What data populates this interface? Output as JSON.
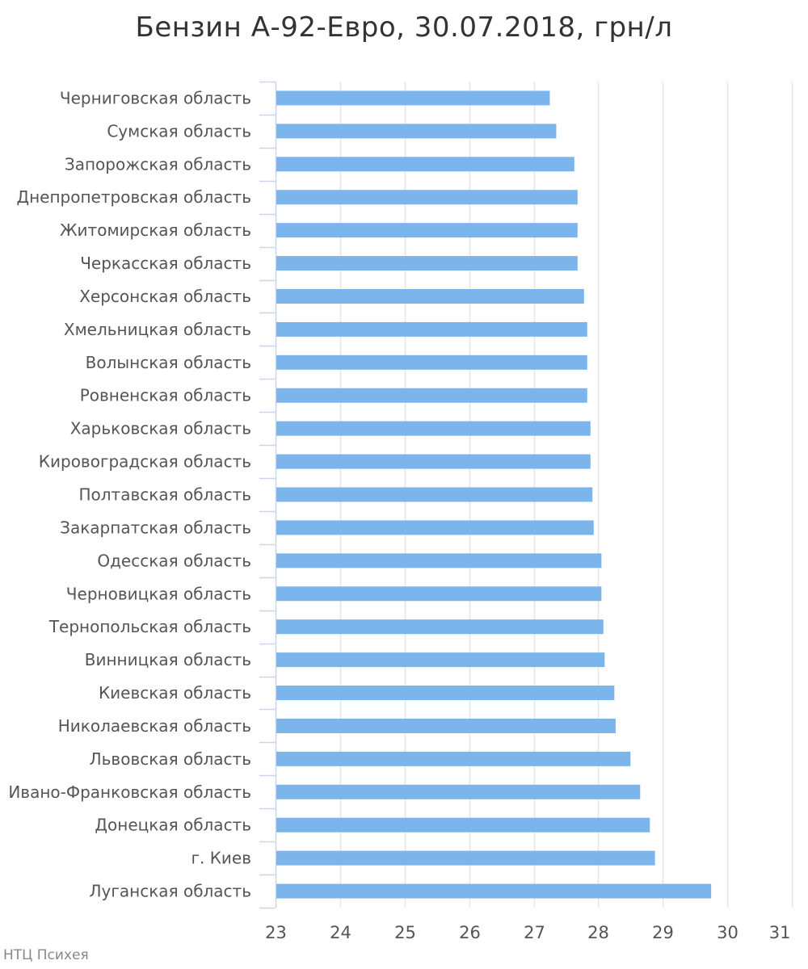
{
  "chart_data": {
    "type": "bar",
    "orientation": "horizontal",
    "title": "Бензин А-92-Евро, 30.07.2018, грн/л",
    "xlabel": "",
    "ylabel": "",
    "categories": [
      "Черниговская область",
      "Сумская область",
      "Запорожская область",
      "Днепропетровская область",
      "Житомирская область",
      "Черкасская область",
      "Херсонская область",
      "Хмельницкая область",
      "Волынская область",
      "Ровненская область",
      "Харьковская область",
      "Кировоградская область",
      "Полтавская область",
      "Закарпатская область",
      "Одесская область",
      "Черновицкая область",
      "Тернопольская область",
      "Винницкая область",
      "Киевская область",
      "Николаевская область",
      "Львовская область",
      "Ивано-Франковская область",
      "Донецкая область",
      "г. Киев",
      "Луганская область"
    ],
    "values": [
      27.25,
      27.35,
      27.63,
      27.68,
      27.68,
      27.68,
      27.78,
      27.83,
      27.83,
      27.83,
      27.88,
      27.88,
      27.91,
      27.93,
      28.05,
      28.05,
      28.08,
      28.1,
      28.25,
      28.27,
      28.5,
      28.65,
      28.8,
      28.88,
      29.75
    ],
    "xlim": [
      23,
      31
    ],
    "xticks": [
      "23",
      "24",
      "25",
      "26",
      "27",
      "28",
      "29",
      "30",
      "31"
    ],
    "grid": true,
    "legend": "none",
    "bar_color": "#7cb5ec",
    "grid_color": "#e6e6e6",
    "axis_color": "#ccd6eb",
    "label_color": "#555555"
  },
  "credit": "НТЦ Психея"
}
